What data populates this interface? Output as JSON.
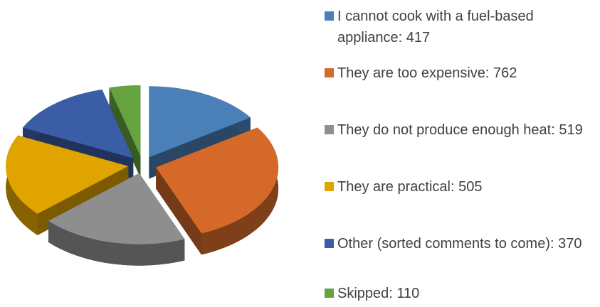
{
  "chart_data": {
    "type": "pie",
    "categories": [
      "I cannot cook with a fuel-based appliance: 417",
      "They are too expensive: 762",
      "They do not produce enough heat: 519",
      "They are practical: 505",
      "Other (sorted comments to come): 370",
      "Skipped: 110"
    ],
    "values": [
      417,
      762,
      519,
      505,
      370,
      110
    ],
    "colors": [
      "#4a7fb8",
      "#d4692a",
      "#8e8e8e",
      "#e0a400",
      "#3a5da6",
      "#66a340"
    ],
    "legend": "right"
  }
}
